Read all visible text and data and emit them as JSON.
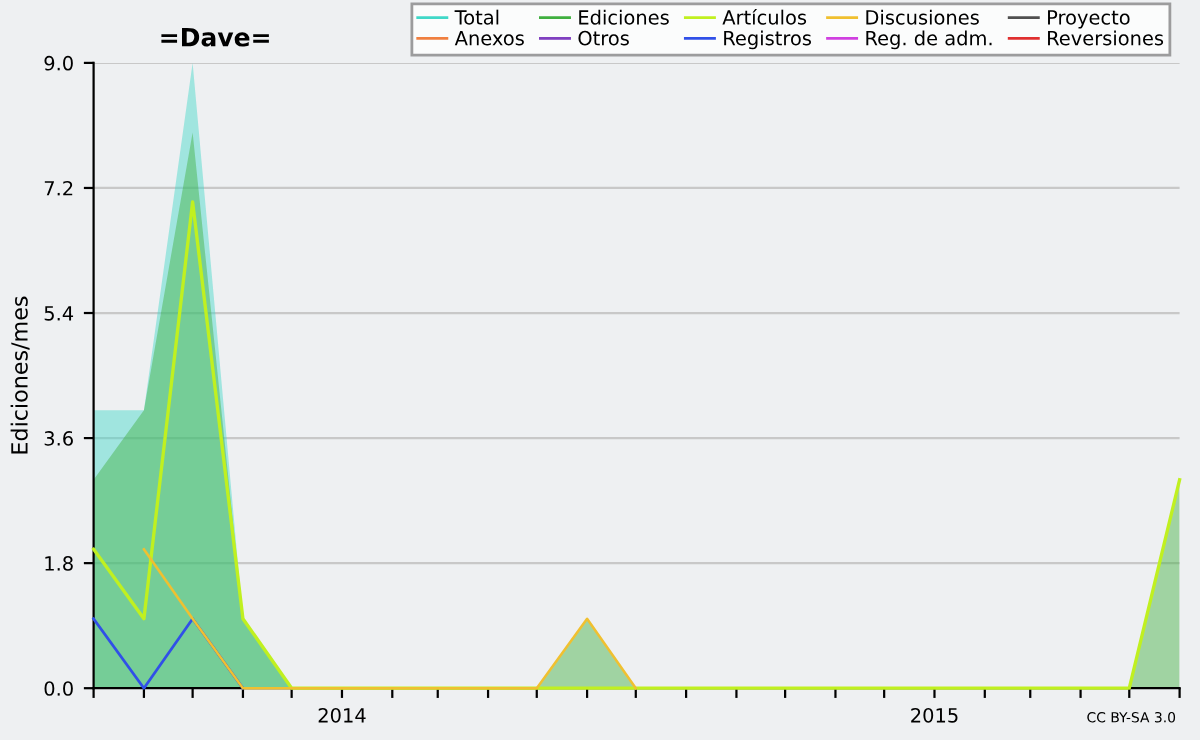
{
  "chart_data": {
    "type": "line",
    "title": "=Dave=",
    "ylabel": "Ediciones/mes",
    "annotations": [
      "CC BY-SA 3.0"
    ],
    "x": [
      "2013-08",
      "2013-09",
      "2013-10",
      "2013-11",
      "2013-12",
      "2014-01",
      "2014-02",
      "2014-03",
      "2014-04",
      "2014-05",
      "2014-06",
      "2014-07",
      "2014-08",
      "2014-09",
      "2014-10",
      "2014-11",
      "2014-12",
      "2015-01",
      "2015-02",
      "2015-03",
      "2015-04",
      "2015-05",
      "2015-06"
    ],
    "series": [
      {
        "name": "Total",
        "type": "area",
        "color": "#40d8c8",
        "values": [
          4,
          4,
          9,
          1,
          0,
          null,
          null,
          null,
          null,
          null,
          null,
          null,
          null,
          null,
          null,
          null,
          null,
          null,
          null,
          null,
          null,
          null,
          null
        ]
      },
      {
        "name": "Anexos",
        "color": "#f08040",
        "values": [
          null,
          null,
          null,
          null,
          null,
          null,
          null,
          null,
          null,
          null,
          null,
          null,
          null,
          null,
          null,
          null,
          null,
          null,
          null,
          null,
          null,
          null,
          null
        ]
      },
      {
        "name": "Ediciones",
        "type": "area",
        "color": "#40b040",
        "values": [
          3,
          4,
          8,
          1,
          0,
          null,
          null,
          null,
          null,
          0,
          1,
          0,
          null,
          null,
          null,
          null,
          null,
          null,
          null,
          null,
          null,
          0,
          3
        ]
      },
      {
        "name": "Otros",
        "color": "#8040c0",
        "values": [
          null,
          null,
          null,
          null,
          null,
          null,
          null,
          null,
          null,
          null,
          null,
          null,
          null,
          null,
          null,
          null,
          null,
          null,
          null,
          null,
          null,
          null,
          null
        ]
      },
      {
        "name": "Artículos",
        "color": "#c0f020",
        "x": [
          "2013-08",
          "2013-09",
          "2013-10",
          "2013-11",
          "2013-12",
          "2015-05",
          "2015-06"
        ],
        "values": [
          2,
          1,
          7,
          1,
          0,
          0,
          3
        ]
      },
      {
        "name": "Registros",
        "color": "#3050e8",
        "values": [
          1,
          0,
          1,
          0,
          null,
          null,
          null,
          null,
          null,
          null,
          null,
          null,
          null,
          null,
          null,
          null,
          null,
          null,
          null,
          null,
          null,
          null,
          null
        ]
      },
      {
        "name": "Discusiones",
        "color": "#f0c030",
        "x": [
          "2013-09",
          "2013-10",
          "2013-11",
          "2014-05",
          "2014-06",
          "2014-07"
        ],
        "values": [
          2,
          1,
          0,
          0,
          1,
          0
        ]
      },
      {
        "name": "Reg. de adm.",
        "color": "#d040e0",
        "values": [
          null,
          null,
          null,
          null,
          null,
          null,
          null,
          null,
          null,
          null,
          null,
          null,
          null,
          null,
          null,
          null,
          null,
          null,
          null,
          null,
          null,
          null,
          null
        ]
      },
      {
        "name": "Proyecto",
        "color": "#505050",
        "values": [
          null,
          null,
          null,
          null,
          null,
          null,
          null,
          null,
          null,
          null,
          null,
          null,
          null,
          null,
          null,
          null,
          null,
          null,
          null,
          null,
          null,
          null,
          null
        ]
      },
      {
        "name": "Reversiones",
        "color": "#e03030",
        "values": [
          null,
          null,
          null,
          null,
          null,
          null,
          null,
          null,
          null,
          null,
          null,
          null,
          null,
          null,
          null,
          null,
          null,
          null,
          null,
          null,
          null,
          null,
          null
        ]
      }
    ],
    "xlim": [
      "2013-08",
      "2015-06"
    ],
    "xticks": [
      {
        "value": "2013-08",
        "label": null
      },
      {
        "value": "2013-09",
        "label": null
      },
      {
        "value": "2013-10",
        "label": null
      },
      {
        "value": "2013-11",
        "label": null
      },
      {
        "value": "2013-12",
        "label": null
      },
      {
        "value": "2014-01",
        "label": "2014"
      },
      {
        "value": "2014-02",
        "label": null
      },
      {
        "value": "2014-03",
        "label": null
      },
      {
        "value": "2014-04",
        "label": null
      },
      {
        "value": "2014-05",
        "label": null
      },
      {
        "value": "2014-06",
        "label": null
      },
      {
        "value": "2014-07",
        "label": null
      },
      {
        "value": "2014-08",
        "label": null
      },
      {
        "value": "2014-09",
        "label": null
      },
      {
        "value": "2014-10",
        "label": null
      },
      {
        "value": "2014-11",
        "label": null
      },
      {
        "value": "2014-12",
        "label": null
      },
      {
        "value": "2015-01",
        "label": "2015"
      },
      {
        "value": "2015-02",
        "label": null
      },
      {
        "value": "2015-03",
        "label": null
      },
      {
        "value": "2015-04",
        "label": null
      },
      {
        "value": "2015-05",
        "label": null
      },
      {
        "value": "2015-06",
        "label": null
      }
    ],
    "ylim": [
      0,
      9
    ],
    "yticks": [
      {
        "value": 0,
        "label": "0.0"
      },
      {
        "value": 1.8,
        "label": "1.8"
      },
      {
        "value": 3.6,
        "label": "3.6"
      },
      {
        "value": 5.4,
        "label": "5.4"
      },
      {
        "value": 7.2,
        "label": "7.2"
      },
      {
        "value": 9,
        "label": "9.0"
      }
    ],
    "grid": "y",
    "legend": "top right"
  }
}
